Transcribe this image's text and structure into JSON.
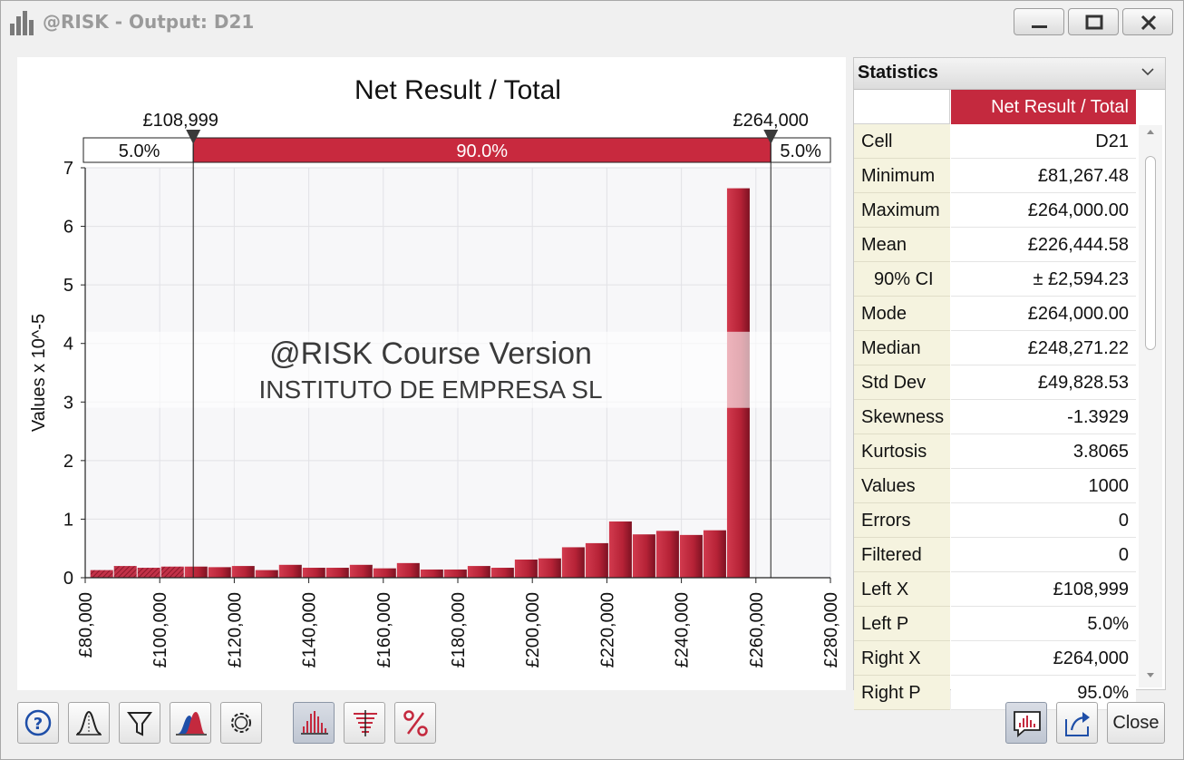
{
  "window": {
    "title": "@RISK - Output: D21",
    "controls": [
      "minimize",
      "maximize",
      "close"
    ]
  },
  "chart_data": {
    "type": "bar",
    "title": "Net Result / Total",
    "ylabel": "Values x 10^-5",
    "xlabel": "",
    "xlim": [
      80000,
      280000
    ],
    "ylim": [
      0,
      7
    ],
    "x_ticks": [
      "£80,000",
      "£100,000",
      "£120,000",
      "£140,000",
      "£160,000",
      "£180,000",
      "£200,000",
      "£220,000",
      "£240,000",
      "£260,000",
      "£280,000"
    ],
    "y_ticks": [
      "0",
      "1",
      "2",
      "3",
      "4",
      "5",
      "6",
      "7"
    ],
    "bin_start": 81267.48,
    "bin_width": 6328.09,
    "values": [
      0.13,
      0.2,
      0.17,
      0.19,
      0.19,
      0.18,
      0.2,
      0.13,
      0.22,
      0.17,
      0.17,
      0.22,
      0.16,
      0.25,
      0.14,
      0.14,
      0.2,
      0.17,
      0.31,
      0.33,
      0.52,
      0.59,
      0.96,
      0.74,
      0.8,
      0.73,
      0.81,
      6.65
    ],
    "grid": true,
    "color": "#c4293e",
    "delimiters": {
      "left_x": 108999,
      "right_x": 264000,
      "left_label": "£108,999",
      "right_label": "£264,000",
      "left_pct": "5.0%",
      "middle_pct": "90.0%",
      "right_pct": "5.0%"
    }
  },
  "watermark": {
    "line1": "@RISK Course Version",
    "line2": "INSTITUTO DE EMPRESA SL"
  },
  "statistics": {
    "title": "Statistics",
    "column_header": "Net Result / Total",
    "rows": [
      {
        "label": "Cell",
        "value": "D21"
      },
      {
        "label": "Minimum",
        "value": "£81,267.48"
      },
      {
        "label": "Maximum",
        "value": "£264,000.00"
      },
      {
        "label": "Mean",
        "value": "£226,444.58"
      },
      {
        "label": "90% CI",
        "value": "± £2,594.23"
      },
      {
        "label": "Mode",
        "value": "£264,000.00"
      },
      {
        "label": "Median",
        "value": "£248,271.22"
      },
      {
        "label": "Std Dev",
        "value": "£49,828.53"
      },
      {
        "label": "Skewness",
        "value": "-1.3929"
      },
      {
        "label": "Kurtosis",
        "value": "3.8065"
      },
      {
        "label": "Values",
        "value": "1000"
      },
      {
        "label": "Errors",
        "value": "0"
      },
      {
        "label": "Filtered",
        "value": "0"
      },
      {
        "label": "Left X",
        "value": "£108,999"
      },
      {
        "label": "Left P",
        "value": "5.0%"
      },
      {
        "label": "Right X",
        "value": "£264,000"
      },
      {
        "label": "Right P",
        "value": "95.0%"
      }
    ]
  },
  "toolbar": {
    "buttons": [
      "help-icon",
      "fit-distribution-icon",
      "filter-icon",
      "overlay-icon",
      "settings-icon",
      "histogram-icon",
      "tornado-icon",
      "percent-icon",
      "comment-icon",
      "export-icon"
    ],
    "close_label": "Close"
  },
  "colors": {
    "accent": "#c4293e",
    "stats_label_bg": "#f5f3df"
  }
}
